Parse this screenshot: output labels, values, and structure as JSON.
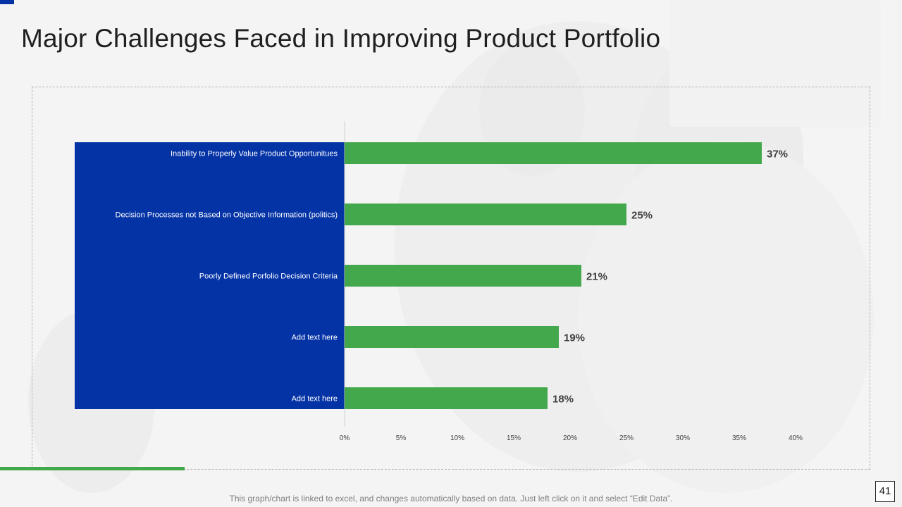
{
  "title": "Major Challenges Faced in Improving Product Portfolio",
  "footnote": "This graph/chart is linked to excel, and changes automatically based on data. Just left click on it and select “Edit Data”.",
  "page_number": "41",
  "colors": {
    "bar": "#43a84b",
    "label_panel": "#0433a6",
    "accent_line": "#43a84b",
    "corner_mark": "#0433a6",
    "data_label": "#404040",
    "tick_label": "#404040"
  },
  "chart_data": {
    "type": "bar",
    "orientation": "horizontal",
    "title": "",
    "xlabel": "",
    "ylabel": "",
    "categories": [
      "Inability to Properly Value Product Opportunitues",
      "Decision Processes not Based on Objective Information (politics)",
      "Poorly Defined Porfolio Decision Criteria",
      "Add text here",
      "Add text here"
    ],
    "values": [
      37,
      25,
      21,
      19,
      18
    ],
    "data_labels": [
      "37%",
      "25%",
      "21%",
      "19%",
      "18%"
    ],
    "xlim": [
      0,
      40
    ],
    "x_ticks": [
      0,
      5,
      10,
      15,
      20,
      25,
      30,
      35,
      40
    ],
    "x_tick_labels": [
      "0%",
      "5%",
      "10%",
      "15%",
      "20%",
      "25%",
      "30%",
      "35%",
      "40%"
    ],
    "grid": false,
    "legend": "none"
  }
}
